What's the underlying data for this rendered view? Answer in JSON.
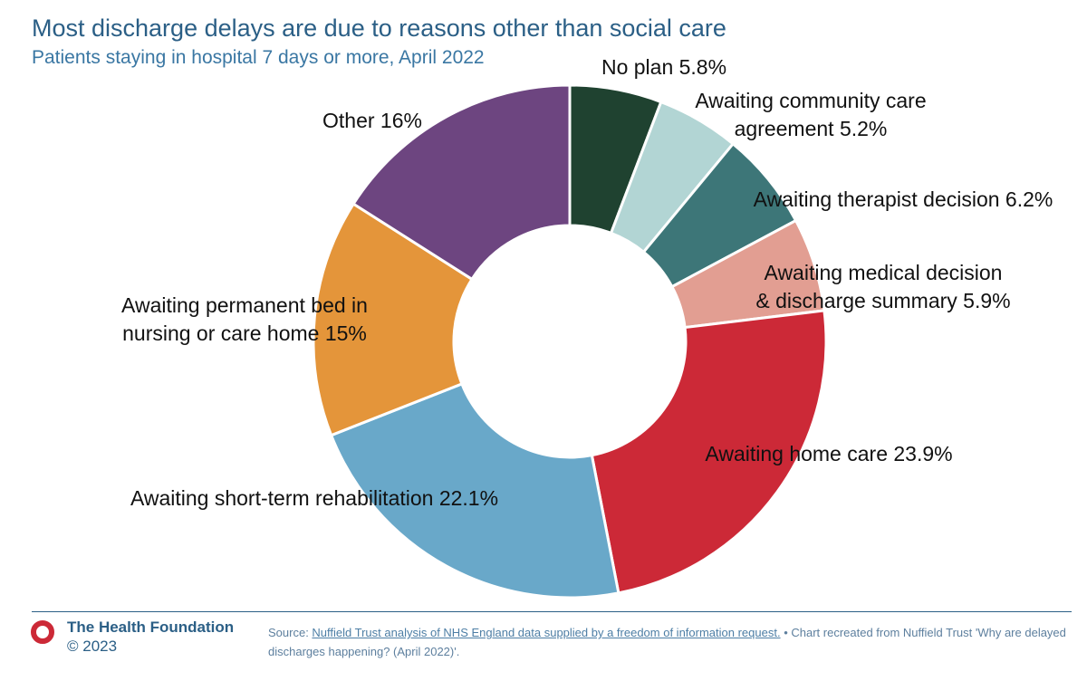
{
  "header": {
    "title": "Most discharge delays are due to reasons other than social care",
    "subtitle": "Patients staying in hospital 7 days or more, April 2022"
  },
  "chart_data": {
    "type": "pie",
    "donut": true,
    "title": "Most discharge delays are due to reasons other than social care",
    "subtitle": "Patients staying in hospital 7 days or more, April 2022",
    "unit": "%",
    "slices": [
      {
        "name": "No plan",
        "value": 5.8,
        "value_label": "5.8%",
        "label_lines": [
          "No plan 5.8%"
        ],
        "color": "#1f4230"
      },
      {
        "name": "Awaiting community care agreement",
        "value": 5.2,
        "value_label": "5.2%",
        "label_lines": [
          "Awaiting community care",
          "agreement 5.2%"
        ],
        "color": "#b2d5d4"
      },
      {
        "name": "Awaiting therapist decision",
        "value": 6.2,
        "value_label": "6.2%",
        "label_lines": [
          "Awaiting therapist decision 6.2%"
        ],
        "color": "#3d7678"
      },
      {
        "name": "Awaiting medical decision & discharge summary",
        "value": 5.9,
        "value_label": "5.9%",
        "label_lines": [
          "Awaiting medical decision",
          "& discharge summary 5.9%"
        ],
        "color": "#e29e92"
      },
      {
        "name": "Awaiting home care",
        "value": 23.9,
        "value_label": "23.9%",
        "label_lines": [
          "Awaiting home care 23.9%"
        ],
        "color": "#cc2937"
      },
      {
        "name": "Awaiting short-term rehabilitation",
        "value": 22.1,
        "value_label": "22.1%",
        "label_lines": [
          "Awaiting short-term rehabilitation 22.1%"
        ],
        "color": "#69a8c9"
      },
      {
        "name": "Awaiting permanent bed in nursing or care home",
        "value": 15,
        "value_label": "15%",
        "label_lines": [
          "Awaiting permanent bed in",
          "nursing or care home 15%"
        ],
        "color": "#e4953a"
      },
      {
        "name": "Other",
        "value": 16,
        "value_label": "16%",
        "label_lines": [
          "Other 16%"
        ],
        "color": "#6d4580"
      }
    ]
  },
  "footer": {
    "brand": "The Health Foundation",
    "copyright": "© 2023",
    "source_prefix": "Source: ",
    "source_link": "Nuffield Trust analysis of NHS England data supplied by a freedom of information request.",
    "source_suffix": " • Chart recreated from Nuffield Trust 'Why are delayed discharges happening? (April 2022)'.",
    "logo_color": "#cc2937"
  }
}
